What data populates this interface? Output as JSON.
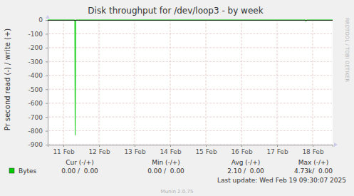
{
  "chart_data": {
    "type": "line",
    "title": "Disk throughput for /dev/loop3 - by week",
    "y_label": "Pr second read (-) / write (+)",
    "x": [
      11.06,
      11.82,
      11.83,
      11.85,
      18.3,
      18.31,
      18.33,
      19.06
    ],
    "xlim": [
      11.06,
      19.06
    ],
    "xticks": [
      {
        "value": 11.5,
        "label": "11 Feb"
      },
      {
        "value": 12.5,
        "label": "12 Feb"
      },
      {
        "value": 13.5,
        "label": "13 Feb"
      },
      {
        "value": 14.5,
        "label": "14 Feb"
      },
      {
        "value": 15.5,
        "label": "15 Feb"
      },
      {
        "value": 16.5,
        "label": "16 Feb"
      },
      {
        "value": 17.5,
        "label": "17 Feb"
      },
      {
        "value": 18.5,
        "label": "18 Feb"
      }
    ],
    "ylim": [
      -900,
      0
    ],
    "yticks": [
      -900,
      -800,
      -700,
      -600,
      -500,
      -400,
      -300,
      -200,
      -100,
      0
    ],
    "grid": true,
    "series": [
      {
        "name": "Bytes",
        "color": "#00cc00",
        "values": [
          0,
          0,
          -830,
          0,
          0,
          -10,
          0,
          0
        ]
      }
    ],
    "summary": {
      "columns": [
        "Cur (-/+)",
        "Min (-/+)",
        "Avg (-/+)",
        "Max (-/+)"
      ],
      "values": [
        "0.00 /  0.00",
        "0.00 /  0.00",
        "2.10 /  0.00",
        "4.73k/  0.00"
      ]
    },
    "last_update": "Last update: Wed Feb 19 09:30:07 2025",
    "footer": "Munin 2.0.75",
    "watermark": "RRDTOOL / TOBI OETIKER"
  }
}
